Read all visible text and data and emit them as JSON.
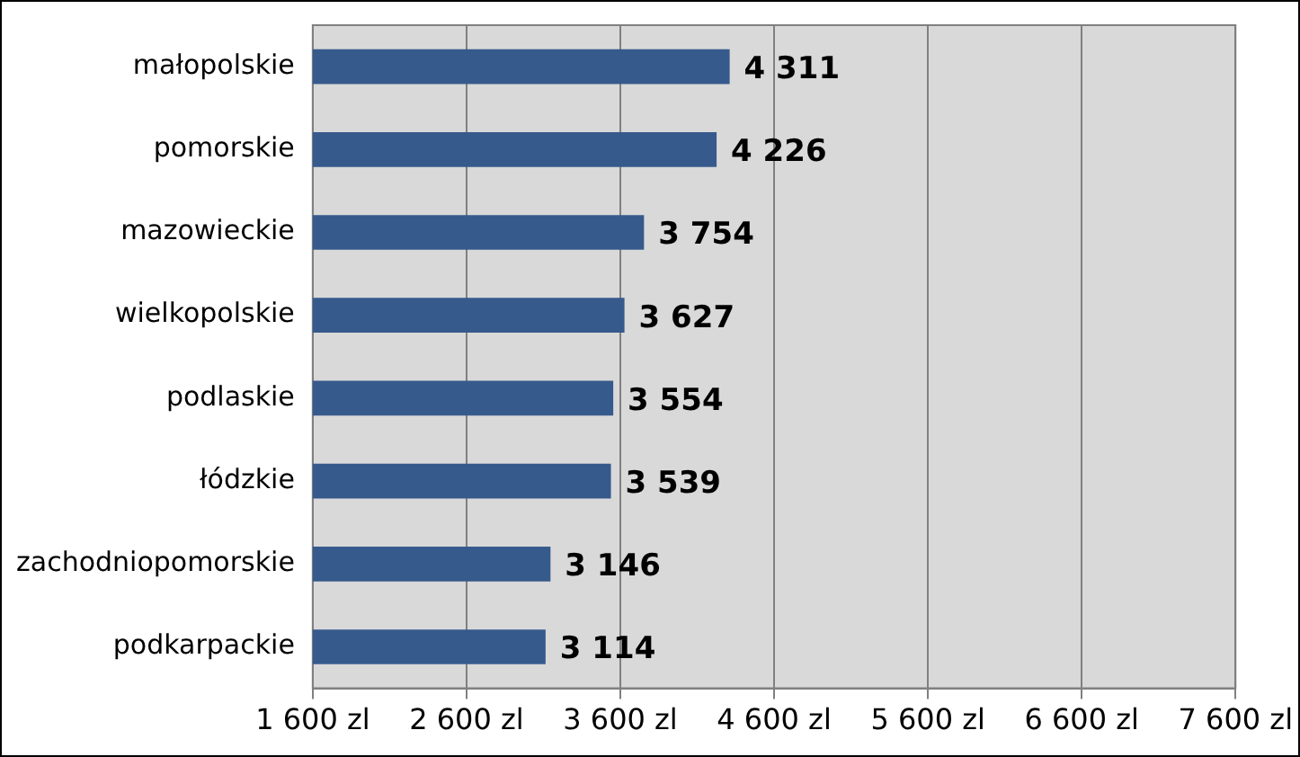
{
  "chart_data": {
    "type": "bar",
    "orientation": "horizontal",
    "categories": [
      "małopolskie",
      "pomorskie",
      "mazowieckie",
      "wielkopolskie",
      "podlaskie",
      "łódzkie",
      "zachodniopomorskie",
      "podkarpackie"
    ],
    "values": [
      4311,
      4226,
      3754,
      3627,
      3554,
      3539,
      3146,
      3114
    ],
    "value_labels": [
      "4 311",
      "4 226",
      "3 754",
      "3 627",
      "3 554",
      "3 539",
      "3 146",
      "3 114"
    ],
    "color": "#375a8c",
    "xlim": [
      1600,
      7600
    ],
    "xticks": [
      {
        "value": 1600,
        "label": "1 600 zl"
      },
      {
        "value": 2600,
        "label": "2 600 zl"
      },
      {
        "value": 3600,
        "label": "3 600 zl"
      },
      {
        "value": 4600,
        "label": "4 600 zl"
      },
      {
        "value": 5600,
        "label": "5 600 zl"
      },
      {
        "value": 6600,
        "label": "6 600 zl"
      },
      {
        "value": 7600,
        "label": "7 600 zl"
      }
    ],
    "grid": "x",
    "legend": false
  }
}
